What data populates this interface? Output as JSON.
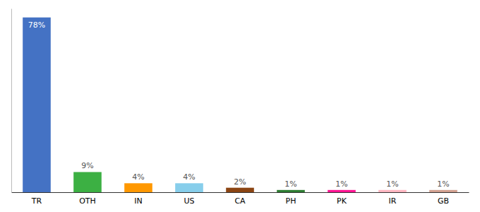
{
  "chart_data": {
    "type": "bar",
    "categories": [
      "TR",
      "OTH",
      "IN",
      "US",
      "CA",
      "PH",
      "PK",
      "IR",
      "GB"
    ],
    "values": [
      78,
      9,
      4,
      4,
      2,
      1,
      1,
      1,
      1
    ],
    "value_labels": [
      "78%",
      "9%",
      "4%",
      "4%",
      "2%",
      "1%",
      "1%",
      "1%",
      "1%"
    ],
    "colors": [
      "#4472c4",
      "#3cb043",
      "#ff9800",
      "#87ceeb",
      "#8b4513",
      "#2e7d32",
      "#ff1493",
      "#ffb6c1",
      "#d2a090"
    ],
    "ylim": [
      0,
      82
    ],
    "data_labels": true,
    "tick_labels": "x"
  }
}
